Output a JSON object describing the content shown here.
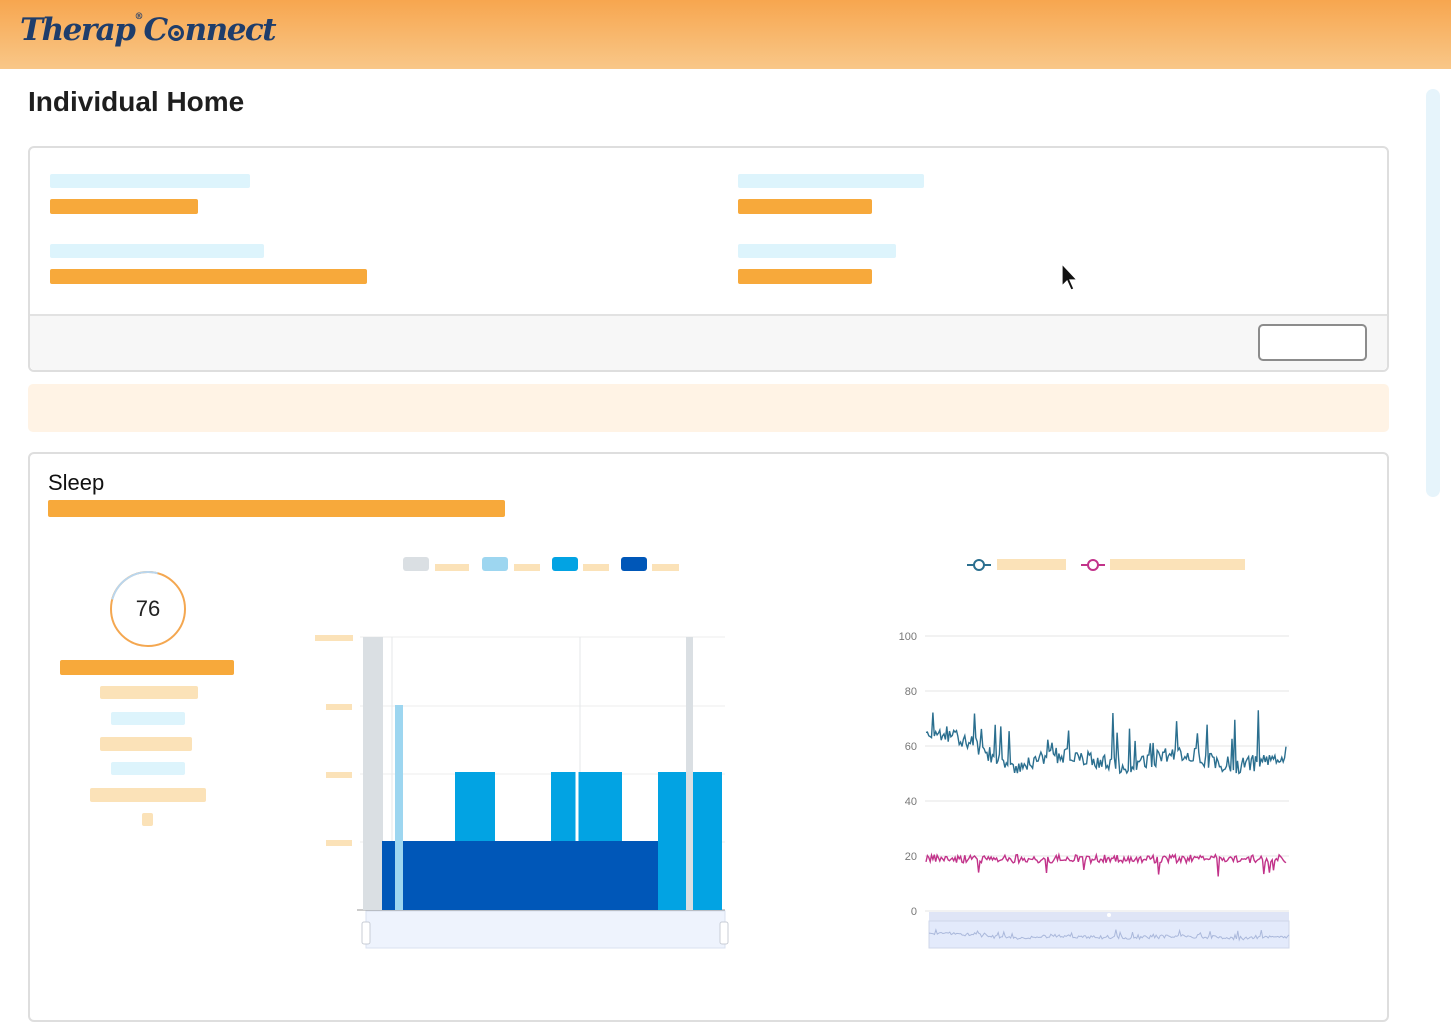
{
  "app": {
    "logo_text_1": "Therap",
    "logo_text_2": "C",
    "logo_text_3": "nnect",
    "logo_tm": "®"
  },
  "page": {
    "title": "Individual Home"
  },
  "sleep": {
    "title": "Sleep",
    "score": "76",
    "tick_labels_right": [
      "100",
      "80",
      "60",
      "40",
      "20",
      "0"
    ]
  },
  "colors": {
    "stage_awake": "#dadfe3",
    "stage_rem": "#9dd6f0",
    "stage_light": "#02a3e3",
    "stage_deep": "#0057b8",
    "series_heart": "#2b6f8f",
    "series_resp": "#c2338a",
    "accent": "#f7a93b"
  },
  "icons": {
    "cursor": "mouse-pointer-icon",
    "score_ring": "sleep-score-ring-icon"
  }
}
